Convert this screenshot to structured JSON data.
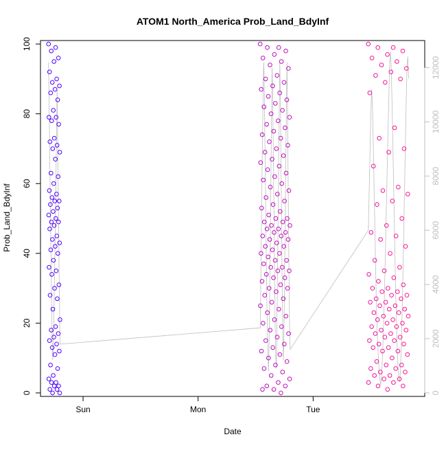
{
  "chart_data": {
    "type": "scatter",
    "title": "ATOM1 North_America Prob_Land_BdyInf",
    "xlabel": "Date",
    "ylabel": "Prob_Land_BdyInf",
    "x_axis": {
      "ticks": [
        {
          "label": "Sun",
          "value": 1.0
        },
        {
          "label": "Mon",
          "value": 2.0
        },
        {
          "label": "Tue",
          "value": 3.0
        }
      ],
      "range": [
        0.63,
        3.97
      ]
    },
    "y_axis": {
      "range": [
        -1,
        101
      ],
      "ticks": [
        0,
        20,
        40,
        60,
        80,
        100
      ]
    },
    "y2_axis": {
      "range": [
        -130,
        13000
      ],
      "ticks": [
        0,
        2000,
        4000,
        6000,
        8000,
        10000,
        12000
      ]
    },
    "series": [
      {
        "kind": "points",
        "color_start": "#4b00ff",
        "color_end": "#ff1493",
        "clusters": [
          {
            "x_start": 0.7,
            "x_end": 0.8,
            "min": 0,
            "max": 100,
            "values": [
              100,
              99,
              98,
              96,
              95,
              92,
              90,
              89,
              88,
              87,
              86,
              84,
              81,
              79,
              79,
              78,
              77,
              73,
              72,
              71,
              70,
              69,
              67,
              63,
              62,
              60,
              58,
              57,
              56,
              55,
              55,
              54,
              53,
              52,
              51,
              50,
              49,
              49,
              48,
              47,
              45,
              44,
              43,
              42,
              41,
              40,
              38,
              36,
              35,
              34,
              31,
              30,
              28,
              27,
              24,
              21,
              19,
              18,
              17,
              16,
              15,
              14,
              13,
              12,
              11,
              8,
              7,
              5,
              4,
              3,
              3,
              2,
              2,
              1,
              1,
              0,
              0
            ]
          },
          {
            "x_start": 2.54,
            "x_end": 2.8,
            "min": 0,
            "max": 100,
            "values": [
              100,
              99,
              99,
              98,
              97,
              96,
              95,
              94,
              93,
              91,
              90,
              89,
              88,
              87,
              86,
              85,
              84,
              83,
              82,
              81,
              80,
              79,
              78,
              77,
              76,
              75,
              74,
              73,
              72,
              71,
              70,
              69,
              68,
              67,
              66,
              65,
              64,
              63,
              62,
              61,
              60,
              59,
              58,
              57,
              56,
              55,
              54,
              53,
              52,
              51,
              50,
              50,
              49,
              49,
              48,
              48,
              47,
              47,
              46,
              46,
              45,
              45,
              44,
              44,
              43,
              42,
              42,
              41,
              40,
              40,
              39,
              38,
              38,
              37,
              36,
              36,
              35,
              35,
              34,
              33,
              33,
              32,
              31,
              30,
              30,
              29,
              28,
              27,
              26,
              25,
              24,
              23,
              22,
              21,
              20,
              19,
              18,
              17,
              16,
              15,
              14,
              13,
              12,
              11,
              10,
              9,
              8,
              7,
              6,
              5,
              4,
              3,
              2,
              2,
              1,
              1,
              0
            ]
          },
          {
            "x_start": 3.48,
            "x_end": 3.83,
            "min": 1,
            "max": 100,
            "values": [
              100,
              99,
              99,
              98,
              97,
              96,
              95,
              94,
              93,
              92,
              91,
              90,
              89,
              86,
              76,
              73,
              70,
              69,
              65,
              59,
              58,
              57,
              55,
              54,
              50,
              48,
              46,
              45,
              44,
              42,
              40,
              38,
              36,
              35,
              34,
              33,
              32,
              31,
              30,
              30,
              29,
              29,
              28,
              28,
              27,
              27,
              26,
              26,
              25,
              25,
              24,
              24,
              23,
              23,
              22,
              22,
              21,
              21,
              20,
              20,
              19,
              19,
              18,
              18,
              17,
              17,
              16,
              16,
              15,
              15,
              14,
              14,
              13,
              13,
              12,
              12,
              11,
              10,
              9,
              8,
              8,
              7,
              7,
              6,
              6,
              5,
              5,
              4,
              4,
              3,
              3,
              2,
              2,
              1
            ]
          }
        ]
      },
      {
        "kind": "line",
        "axis": "right",
        "color": "#bebebe",
        "clusters": [
          {
            "x_start": 0.7,
            "x_end": 0.8,
            "values": [
              12200,
              11000,
              9800,
              8500,
              7200,
              6000,
              4800,
              3600,
              2500,
              1600,
              1200,
              1800,
              2400,
              3200,
              4200,
              5200,
              6300,
              7400,
              8600,
              9800,
              11200,
              10000,
              8600,
              7200,
              5600,
              4200,
              2800,
              1800
            ]
          },
          {
            "x_start": 2.54,
            "x_end": 2.8,
            "values": [
              2400,
              3800,
              5600,
              7200,
              8800,
              10200,
              11600,
              12200,
              11000,
              9400,
              7800,
              6200,
              4600,
              3200,
              2100,
              1400,
              800,
              1600,
              3000,
              4800,
              6600,
              8400,
              10400,
              12000,
              11200,
              9600,
              7800,
              6000,
              4200,
              2600,
              1500,
              900,
              1800,
              3400,
              5200,
              7000,
              8800,
              10600,
              12200,
              11000,
              9000,
              7000,
              5000,
              3200,
              1900,
              1200,
              2200,
              3800,
              5600,
              7400,
              9200,
              11000,
              12200,
              10400,
              8200,
              6000,
              4000,
              2400,
              1600
            ]
          },
          {
            "x_start": 3.48,
            "x_end": 3.83,
            "values": [
              6000,
              7400,
              8800,
              10200,
              11200,
              10600,
              9200,
              7600,
              6000,
              4400,
              3000,
              2100,
              1400,
              900,
              500,
              300,
              600,
              1200,
              2000,
              3000,
              4200,
              5600,
              7000,
              8400,
              9800,
              11000,
              12200,
              12600,
              11800,
              10400,
              8800,
              7200,
              5600,
              4000,
              2800,
              1800,
              1000,
              600,
              400,
              800,
              1600,
              2800,
              4200,
              5800,
              7400,
              9000,
              10600,
              12000,
              12400,
              11600
            ]
          }
        ]
      }
    ]
  }
}
